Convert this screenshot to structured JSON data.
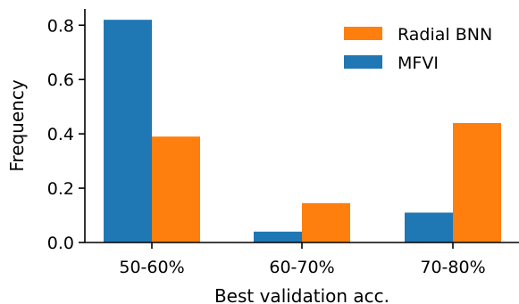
{
  "chart_data": {
    "type": "bar",
    "title": "",
    "xlabel": "Best validation acc.",
    "ylabel": "Frequency",
    "categories": [
      "50-60%",
      "60-70%",
      "70-80%"
    ],
    "series": [
      {
        "name": "MFVI",
        "color": "#1f77b4",
        "values": [
          0.82,
          0.04,
          0.11
        ]
      },
      {
        "name": "Radial BNN",
        "color": "#ff7f0e",
        "values": [
          0.39,
          0.145,
          0.44
        ]
      }
    ],
    "ylim": [
      0,
      0.86
    ],
    "yticks": [
      0.0,
      0.2,
      0.4,
      0.6,
      0.8
    ],
    "ytick_labels": [
      "0.0",
      "0.2",
      "0.4",
      "0.6",
      "0.8"
    ],
    "grid": false,
    "legend": {
      "placement": "top-right",
      "entries": [
        {
          "label": "Radial BNN",
          "color": "#ff7f0e"
        },
        {
          "label": "MFVI",
          "color": "#1f77b4"
        }
      ]
    }
  }
}
